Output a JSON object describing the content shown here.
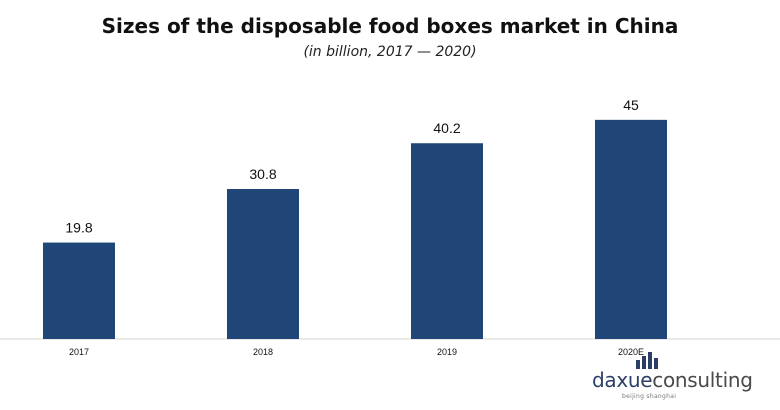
{
  "chart_data": {
    "type": "bar",
    "title": "Sizes of the disposable food boxes market in China",
    "subtitle": "(in billion, 2017 — 2020)",
    "categories": [
      "2017",
      "2018",
      "2019",
      "2020E"
    ],
    "values": [
      19.8,
      30.8,
      40.2,
      45
    ],
    "value_labels": [
      "19.8",
      "30.8",
      "40.2",
      "45"
    ],
    "xlabel": "",
    "ylabel": "",
    "ylim": [
      0,
      50
    ],
    "grid": false,
    "legend": "none",
    "bar_color": "#1f4677"
  },
  "logo": {
    "name_part1": "daxue",
    "name_part2": "consulting",
    "tagline": "beijing shanghai"
  }
}
